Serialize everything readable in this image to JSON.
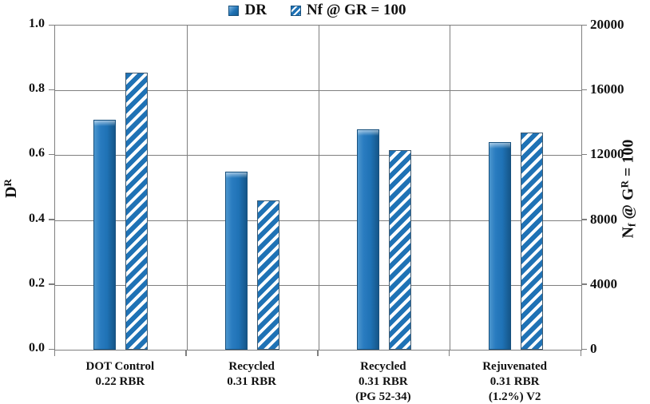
{
  "legend": {
    "items": [
      {
        "label": "DR",
        "swatch": "solid"
      },
      {
        "label": "Nf @ GR = 100",
        "swatch": "hatched"
      }
    ]
  },
  "left_axis_title": {
    "base": "D",
    "sup": "R"
  },
  "right_axis_title": {
    "base": "N",
    "sub": "f",
    "mid": " @ G",
    "sup": "R",
    "tail": " = 100"
  },
  "colors": {
    "bar_blue": "#1F72B5",
    "bar_border": "#17507D",
    "grid_gray": "#7F7F7F",
    "text": "#111111"
  },
  "chart_data": {
    "type": "bar",
    "title": "",
    "categories": [
      [
        "DOT Control",
        "0.22 RBR"
      ],
      [
        "Recycled",
        "0.31 RBR"
      ],
      [
        "Recycled",
        "0.31 RBR",
        "(PG 52-34)"
      ],
      [
        "Rejuvenated",
        "0.31 RBR",
        "(1.2%) V2"
      ]
    ],
    "series": [
      {
        "name": "DR",
        "pattern": "solid",
        "axis": "left",
        "values": [
          0.71,
          0.55,
          0.68,
          0.64
        ]
      },
      {
        "name": "Nf @ GR = 100",
        "pattern": "hatched",
        "axis": "right",
        "values": [
          17100,
          9200,
          12300,
          13400
        ]
      }
    ],
    "left_axis": {
      "label": "DR",
      "ticks": [
        "0.0",
        "0.2",
        "0.4",
        "0.6",
        "0.8",
        "1.0"
      ],
      "lim": [
        0,
        1.0
      ]
    },
    "right_axis": {
      "label": "Nf @ GR = 100",
      "ticks": [
        "0",
        "4000",
        "8000",
        "12000",
        "16000",
        "20000"
      ],
      "lim": [
        0,
        20000
      ]
    },
    "grid": true,
    "legend_position": "top"
  }
}
